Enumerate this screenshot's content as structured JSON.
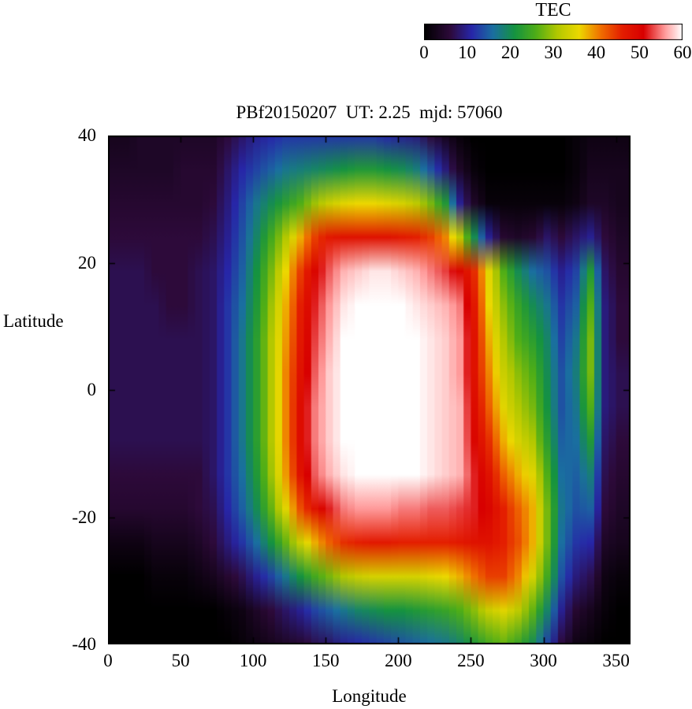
{
  "title": "PBf20150207  UT: 2.25  mjd: 57060",
  "colorbar": {
    "label": "TEC",
    "min": 0,
    "max": 60,
    "ticks": [
      0,
      10,
      20,
      30,
      40,
      50,
      60
    ]
  },
  "axes": {
    "xlabel": "Longitude",
    "ylabel": "Latitude",
    "x_ticks": [
      0,
      50,
      100,
      150,
      200,
      250,
      300,
      350
    ],
    "y_ticks": [
      40,
      20,
      0,
      -20,
      -40
    ],
    "xlim": [
      0,
      360
    ],
    "ylim": [
      -40,
      40
    ]
  },
  "chart_data": {
    "type": "heatmap",
    "title": "PBf20150207  UT: 2.25  mjd: 57060",
    "xlabel": "Longitude",
    "ylabel": "Latitude",
    "colorbar_label": "TEC",
    "xlim": [
      0,
      360
    ],
    "ylim": [
      -40,
      40
    ],
    "zlim": [
      0,
      60
    ],
    "x_ticks": [
      0,
      50,
      100,
      150,
      200,
      250,
      300,
      350
    ],
    "y_ticks": [
      40,
      20,
      0,
      -20,
      -40
    ],
    "colorbar_ticks": [
      0,
      10,
      20,
      30,
      40,
      50,
      60
    ],
    "palette": [
      [
        0,
        "#000000"
      ],
      [
        6,
        "#2d0a3a"
      ],
      [
        11,
        "#2726a8"
      ],
      [
        16,
        "#1a6fa0"
      ],
      [
        21,
        "#159340"
      ],
      [
        26,
        "#4fae17"
      ],
      [
        31,
        "#b3c800"
      ],
      [
        36,
        "#ecd800"
      ],
      [
        41,
        "#f07000"
      ],
      [
        46,
        "#e41e00"
      ],
      [
        51,
        "#d80000"
      ],
      [
        56,
        "#ff9a9a"
      ],
      [
        60,
        "#ffffff"
      ]
    ],
    "lon_centers": [
      5,
      15,
      25,
      35,
      45,
      55,
      65,
      75,
      85,
      95,
      105,
      115,
      125,
      135,
      145,
      155,
      165,
      175,
      185,
      195,
      205,
      215,
      225,
      235,
      245,
      255,
      265,
      275,
      285,
      295,
      305,
      315,
      325,
      335,
      345,
      355
    ],
    "lat_centers": [
      37.5,
      32.5,
      27.5,
      22.5,
      17.5,
      12.5,
      7.5,
      2.5,
      -2.5,
      -7.5,
      -12.5,
      -17.5,
      -22.5,
      -27.5,
      -32.5,
      -37.5
    ],
    "values": [
      [
        3,
        3,
        4,
        4,
        4,
        4,
        4,
        4,
        6,
        8,
        10,
        11,
        12,
        12,
        12,
        12,
        12,
        12,
        12,
        11,
        10,
        9,
        6,
        3,
        1,
        0,
        0,
        0,
        0,
        0,
        0,
        0,
        1,
        2,
        2,
        2
      ],
      [
        4,
        4,
        4,
        4,
        4,
        5,
        5,
        5,
        8,
        11,
        13,
        15,
        17,
        18,
        19,
        20,
        21,
        22,
        22,
        21,
        20,
        18,
        14,
        9,
        4,
        1,
        0,
        0,
        0,
        0,
        0,
        0,
        1,
        3,
        3,
        3
      ],
      [
        5,
        5,
        5,
        5,
        5,
        5,
        5,
        6,
        9,
        13,
        17,
        20,
        23,
        26,
        30,
        33,
        35,
        36,
        36,
        35,
        34,
        32,
        28,
        22,
        10,
        4,
        1,
        1,
        1,
        1,
        1,
        1,
        2,
        4,
        4,
        3
      ],
      [
        6,
        6,
        6,
        6,
        6,
        6,
        6,
        7,
        10,
        14,
        19,
        25,
        31,
        38,
        44,
        47,
        48,
        48,
        48,
        48,
        47,
        46,
        44,
        40,
        32,
        20,
        10,
        5,
        4,
        5,
        8,
        6,
        8,
        10,
        6,
        4
      ],
      [
        7,
        7,
        7,
        6,
        6,
        6,
        7,
        8,
        11,
        15,
        21,
        28,
        36,
        44,
        50,
        54,
        57,
        58,
        59,
        59,
        58,
        57,
        55,
        53,
        50,
        45,
        35,
        26,
        20,
        16,
        14,
        10,
        13,
        22,
        8,
        5
      ],
      [
        7,
        7,
        7,
        7,
        6,
        6,
        7,
        8,
        12,
        16,
        22,
        30,
        38,
        46,
        52,
        56,
        59,
        60,
        60,
        60,
        60,
        59,
        58,
        57,
        55,
        47,
        36,
        29,
        24,
        20,
        17,
        12,
        15,
        26,
        9,
        6
      ],
      [
        7,
        7,
        7,
        7,
        7,
        7,
        7,
        8,
        12,
        17,
        23,
        31,
        39,
        47,
        53,
        57,
        60,
        60,
        60,
        60,
        60,
        60,
        59,
        58,
        56,
        48,
        38,
        31,
        26,
        23,
        19,
        13,
        17,
        28,
        9,
        6
      ],
      [
        7,
        7,
        7,
        7,
        7,
        7,
        7,
        8,
        12,
        17,
        23,
        31,
        40,
        48,
        54,
        58,
        60,
        60,
        60,
        60,
        60,
        60,
        59,
        58,
        56,
        48,
        40,
        33,
        29,
        26,
        20,
        14,
        18,
        28,
        9,
        7
      ],
      [
        7,
        7,
        7,
        7,
        7,
        7,
        7,
        8,
        12,
        17,
        23,
        31,
        40,
        49,
        55,
        58,
        60,
        60,
        60,
        60,
        60,
        60,
        59,
        58,
        57,
        49,
        42,
        35,
        31,
        28,
        21,
        14,
        17,
        26,
        9,
        7
      ],
      [
        7,
        7,
        7,
        7,
        7,
        7,
        7,
        8,
        12,
        17,
        23,
        31,
        40,
        49,
        55,
        58,
        60,
        60,
        60,
        60,
        60,
        60,
        59,
        58,
        57,
        50,
        45,
        38,
        34,
        31,
        23,
        15,
        16,
        22,
        8,
        6
      ],
      [
        6,
        6,
        6,
        6,
        6,
        6,
        6,
        8,
        12,
        16,
        22,
        30,
        39,
        48,
        54,
        57,
        59,
        60,
        60,
        60,
        60,
        60,
        59,
        58,
        57,
        52,
        48,
        42,
        38,
        35,
        26,
        16,
        15,
        18,
        7,
        5
      ],
      [
        5,
        5,
        5,
        5,
        5,
        5,
        6,
        7,
        11,
        15,
        20,
        27,
        35,
        43,
        48,
        52,
        55,
        56,
        56,
        56,
        55,
        55,
        54,
        54,
        53,
        52,
        50,
        46,
        42,
        38,
        28,
        17,
        14,
        15,
        6,
        4
      ],
      [
        2,
        2,
        2,
        3,
        3,
        3,
        4,
        6,
        9,
        12,
        16,
        21,
        27,
        33,
        38,
        42,
        45,
        46,
        47,
        47,
        46,
        46,
        46,
        46,
        47,
        48,
        48,
        46,
        43,
        38,
        28,
        16,
        12,
        11,
        4,
        3
      ],
      [
        0,
        0,
        0,
        1,
        1,
        1,
        2,
        3,
        5,
        7,
        10,
        13,
        17,
        21,
        25,
        28,
        31,
        33,
        34,
        34,
        34,
        34,
        35,
        36,
        38,
        41,
        44,
        44,
        40,
        34,
        25,
        14,
        9,
        7,
        2,
        1
      ],
      [
        0,
        0,
        0,
        0,
        0,
        0,
        0,
        0,
        1,
        2,
        4,
        6,
        8,
        10,
        13,
        15,
        17,
        19,
        20,
        21,
        21,
        22,
        23,
        24,
        26,
        29,
        33,
        35,
        32,
        27,
        19,
        10,
        5,
        3,
        1,
        0
      ],
      [
        0,
        0,
        0,
        0,
        0,
        0,
        0,
        0,
        0,
        1,
        2,
        3,
        4,
        5,
        7,
        8,
        10,
        11,
        12,
        13,
        14,
        15,
        16,
        17,
        19,
        22,
        25,
        27,
        24,
        20,
        13,
        6,
        2,
        1,
        0,
        0
      ]
    ]
  }
}
